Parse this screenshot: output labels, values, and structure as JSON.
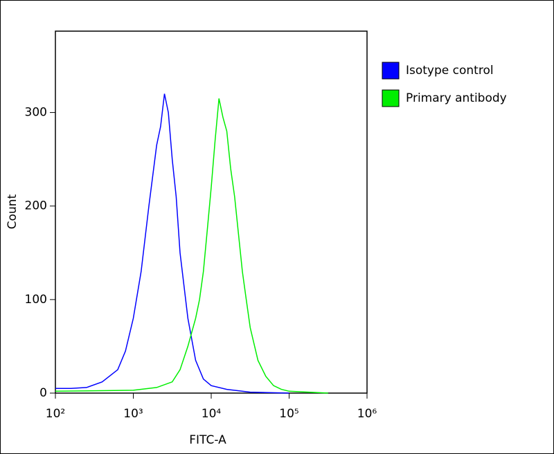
{
  "chart_data": {
    "type": "line",
    "x_scale": "log",
    "x_label": "FITC-A",
    "y_label": "Count",
    "xlim": [
      100,
      1000000
    ],
    "xticks": [
      {
        "value": 100,
        "label": "10²"
      },
      {
        "value": 1000,
        "label": "10³"
      },
      {
        "value": 10000,
        "label": "10⁴"
      },
      {
        "value": 100000,
        "label": "10⁵"
      },
      {
        "value": 1000000,
        "label": "10⁶"
      }
    ],
    "ylim": [
      0,
      387
    ],
    "yticks": [
      0,
      100,
      200,
      300
    ],
    "legend": "top-right",
    "series": [
      {
        "name": "Isotype control",
        "color": "#0000ff",
        "x": [
          100,
          158,
          251,
          398,
          631,
          794,
          1000,
          1259,
          1585,
          1995,
          2239,
          2512,
          2818,
          3162,
          3548,
          3981,
          5012,
          6310,
          7943,
          10000,
          15849,
          31623,
          100000
        ],
        "values": [
          5,
          5,
          6,
          12,
          25,
          45,
          80,
          130,
          200,
          265,
          285,
          320,
          300,
          250,
          210,
          150,
          80,
          35,
          15,
          8,
          4,
          1,
          0
        ]
      },
      {
        "name": "Primary antibody",
        "color": "#00ee00",
        "x": [
          100,
          1000,
          1995,
          3162,
          3981,
          5012,
          6310,
          7079,
          7943,
          8913,
          10000,
          11220,
          12589,
          14125,
          15849,
          17783,
          19953,
          22387,
          25119,
          28184,
          31623,
          39811,
          50119,
          63096,
          79433,
          100000,
          316228
        ],
        "values": [
          2,
          3,
          6,
          12,
          25,
          50,
          80,
          100,
          130,
          175,
          220,
          270,
          315,
          295,
          280,
          240,
          210,
          170,
          130,
          100,
          70,
          35,
          18,
          8,
          4,
          2,
          0
        ]
      }
    ]
  }
}
